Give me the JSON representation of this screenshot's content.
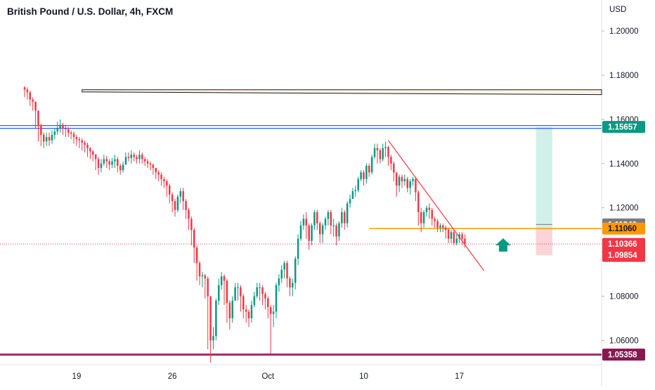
{
  "chart_data": {
    "type": "candlestick",
    "title": "British Pound / U.S. Dollar, 4h, FXCM",
    "currency": "USD",
    "y_range": [
      1.049,
      1.214
    ],
    "y_ticks": [
      "1.20000",
      "1.18000",
      "1.16000",
      "1.14000",
      "1.12000",
      "1.10000",
      "1.08000",
      "1.06000"
    ],
    "x_ticks": [
      {
        "label": "19",
        "bar": 19
      },
      {
        "label": "26",
        "bar": 54
      },
      {
        "label": "Oct",
        "bar": 89
      },
      {
        "label": "10",
        "bar": 124
      },
      {
        "label": "17",
        "bar": 159
      }
    ],
    "x_bar_range": [
      -9,
      211
    ],
    "colors": {
      "up": "#089981",
      "down": "#f23645"
    },
    "closes": [
      1.1735,
      1.1722,
      1.169,
      1.168,
      1.164,
      1.157,
      1.153,
      1.15,
      1.152,
      1.1505,
      1.153,
      1.1545,
      1.156,
      1.1575,
      1.156,
      1.1555,
      1.154,
      1.1535,
      1.152,
      1.151,
      1.1505,
      1.1495,
      1.1485,
      1.147,
      1.1455,
      1.144,
      1.142,
      1.138,
      1.14,
      1.142,
      1.141,
      1.1395,
      1.141,
      1.142,
      1.139,
      1.137,
      1.1395,
      1.143,
      1.1425,
      1.144,
      1.143,
      1.142,
      1.144,
      1.142,
      1.141,
      1.14,
      1.1395,
      1.138,
      1.136,
      1.135,
      1.133,
      1.132,
      1.13,
      1.126,
      1.123,
      1.119,
      1.125,
      1.1275,
      1.123,
      1.119,
      1.115,
      1.11,
      1.102,
      1.095,
      1.089,
      1.0895,
      1.088,
      1.08,
      1.06,
      1.062,
      1.078,
      1.085,
      1.089,
      1.087,
      1.077,
      1.07,
      1.078,
      1.084,
      1.084,
      1.08,
      1.074,
      1.073,
      1.07,
      1.076,
      1.08,
      1.084,
      1.084,
      1.081,
      1.079,
      1.075,
      1.072,
      1.073,
      1.085,
      1.088,
      1.092,
      1.095,
      1.088,
      1.084,
      1.086,
      1.097,
      1.106,
      1.112,
      1.115,
      1.112,
      1.105,
      1.112,
      1.118,
      1.113,
      1.108,
      1.112,
      1.115,
      1.118,
      1.112,
      1.112,
      1.107,
      1.113,
      1.118,
      1.113,
      1.122,
      1.124,
      1.1275,
      1.128,
      1.133,
      1.136,
      1.133,
      1.139,
      1.136,
      1.143,
      1.147,
      1.146,
      1.142,
      1.147,
      1.1475,
      1.143,
      1.14,
      1.136,
      1.13,
      1.134,
      1.132,
      1.133,
      1.129,
      1.132,
      1.133,
      1.127,
      1.118,
      1.113,
      1.118,
      1.12,
      1.119,
      1.115,
      1.114,
      1.111,
      1.112,
      1.111,
      1.11,
      1.106,
      1.109,
      1.104,
      1.106,
      1.108,
      1.106,
      1.1036
    ],
    "lows": [
      1.17,
      1.169,
      1.166,
      1.164,
      1.156,
      1.15,
      1.148,
      1.147,
      1.148,
      1.148,
      1.149,
      1.151,
      1.153,
      1.154,
      1.153,
      1.152,
      1.152,
      1.151,
      1.149,
      1.148,
      1.147,
      1.146,
      1.145,
      1.143,
      1.142,
      1.141,
      1.137,
      1.135,
      1.136,
      1.139,
      1.138,
      1.137,
      1.138,
      1.138,
      1.136,
      1.135,
      1.136,
      1.14,
      1.141,
      1.14,
      1.141,
      1.14,
      1.14,
      1.14,
      1.139,
      1.138,
      1.137,
      1.135,
      1.133,
      1.132,
      1.13,
      1.129,
      1.125,
      1.122,
      1.118,
      1.116,
      1.118,
      1.122,
      1.119,
      1.115,
      1.11,
      1.103,
      1.095,
      1.087,
      1.085,
      1.084,
      1.079,
      1.056,
      1.05,
      1.056,
      1.06,
      1.076,
      1.083,
      1.076,
      1.068,
      1.065,
      1.068,
      1.078,
      1.078,
      1.073,
      1.07,
      1.068,
      1.066,
      1.068,
      1.075,
      1.079,
      1.078,
      1.076,
      1.074,
      1.07,
      1.054,
      1.066,
      1.07,
      1.082,
      1.086,
      1.088,
      1.084,
      1.08,
      1.08,
      1.083,
      1.094,
      1.105,
      1.11,
      1.106,
      1.101,
      1.103,
      1.11,
      1.11,
      1.104,
      1.104,
      1.11,
      1.112,
      1.108,
      1.107,
      1.103,
      1.105,
      1.111,
      1.11,
      1.111,
      1.12,
      1.124,
      1.125,
      1.127,
      1.132,
      1.13,
      1.131,
      1.134,
      1.135,
      1.142,
      1.14,
      1.14,
      1.141,
      1.143,
      1.139,
      1.137,
      1.132,
      1.125,
      1.127,
      1.129,
      1.13,
      1.127,
      1.126,
      1.13,
      1.123,
      1.112,
      1.109,
      1.111,
      1.116,
      1.115,
      1.112,
      1.111,
      1.109,
      1.109,
      1.109,
      1.106,
      1.104,
      1.104,
      1.103,
      1.103,
      1.104,
      1.103,
      1.102
    ],
    "highs": [
      1.175,
      1.1745,
      1.173,
      1.17,
      1.168,
      1.164,
      1.158,
      1.154,
      1.154,
      1.154,
      1.155,
      1.156,
      1.159,
      1.16,
      1.1585,
      1.1575,
      1.1565,
      1.155,
      1.1545,
      1.153,
      1.152,
      1.1515,
      1.1505,
      1.1495,
      1.1475,
      1.146,
      1.1445,
      1.143,
      1.142,
      1.144,
      1.1435,
      1.142,
      1.1425,
      1.144,
      1.143,
      1.14,
      1.141,
      1.145,
      1.145,
      1.146,
      1.145,
      1.144,
      1.146,
      1.145,
      1.143,
      1.142,
      1.141,
      1.14,
      1.138,
      1.137,
      1.136,
      1.134,
      1.133,
      1.131,
      1.127,
      1.124,
      1.126,
      1.129,
      1.129,
      1.124,
      1.12,
      1.116,
      1.111,
      1.103,
      1.096,
      1.091,
      1.09,
      1.089,
      1.08,
      1.066,
      1.079,
      1.088,
      1.091,
      1.09,
      1.088,
      1.078,
      1.08,
      1.086,
      1.086,
      1.085,
      1.081,
      1.076,
      1.074,
      1.078,
      1.082,
      1.086,
      1.086,
      1.085,
      1.082,
      1.08,
      1.076,
      1.076,
      1.086,
      1.09,
      1.094,
      1.096,
      1.096,
      1.089,
      1.088,
      1.098,
      1.108,
      1.114,
      1.117,
      1.118,
      1.113,
      1.113,
      1.119,
      1.119,
      1.114,
      1.113,
      1.116,
      1.119,
      1.119,
      1.115,
      1.113,
      1.114,
      1.12,
      1.119,
      1.123,
      1.126,
      1.129,
      1.13,
      1.134,
      1.137,
      1.137,
      1.14,
      1.14,
      1.144,
      1.149,
      1.149,
      1.147,
      1.149,
      1.15,
      1.148,
      1.144,
      1.141,
      1.136,
      1.135,
      1.135,
      1.135,
      1.134,
      1.133,
      1.134,
      1.134,
      1.128,
      1.12,
      1.119,
      1.121,
      1.122,
      1.12,
      1.116,
      1.115,
      1.113,
      1.113,
      1.112,
      1.111,
      1.11,
      1.11,
      1.108,
      1.109,
      1.109,
      1.108
    ],
    "resistance_box": {
      "y_top": 1.1734,
      "y_bottom_left": 1.1724,
      "y_bottom_right": 1.1712,
      "bar_start": 21,
      "bar_end": 211
    },
    "hlines": [
      {
        "name": "resistance",
        "y": 1.15657,
        "color": "#2962ff"
      },
      {
        "name": "entry",
        "y": 1.1106,
        "color": "#ff9800"
      },
      {
        "name": "support",
        "y": 1.05358,
        "color": "#9c2a6b"
      },
      {
        "name": "last-price",
        "y": 1.10366,
        "color": "#f23645",
        "dotted": true
      }
    ],
    "trendline": {
      "from": {
        "bar": 133,
        "y": 1.1505
      },
      "to": {
        "bar": 168,
        "y": 1.0915
      },
      "color": "#f23645"
    },
    "position": {
      "bar_start": 187,
      "bar_end": 193,
      "entry": 1.1106,
      "target": 1.15657,
      "stop": 1.09854,
      "profit_color": "#d1f0ea",
      "loss_color": "#fad4d7"
    },
    "arrow": {
      "bar": 175,
      "y": 1.1062,
      "color": "#089981"
    },
    "price_labels": [
      {
        "text": "1.15657",
        "y": 1.15657,
        "bg": "#089981",
        "fg": "#ffffff"
      },
      {
        "text": "1.11246",
        "y": 1.11246,
        "bg": "#787b86",
        "fg": "#ffffff"
      },
      {
        "text": "1.11060",
        "y": 1.1106,
        "bg": "#ff9800",
        "fg": "#131722"
      },
      {
        "text": "1.10366",
        "y": 1.10366,
        "bg": "#f23645",
        "fg": "#ffffff",
        "sub": "02:01:14"
      },
      {
        "text": "1.09854",
        "y": 1.09854,
        "bg": "#f23645",
        "fg": "#ffffff"
      },
      {
        "text": "1.05358",
        "y": 1.05358,
        "bg": "#88184f",
        "fg": "#ffffff"
      }
    ]
  }
}
